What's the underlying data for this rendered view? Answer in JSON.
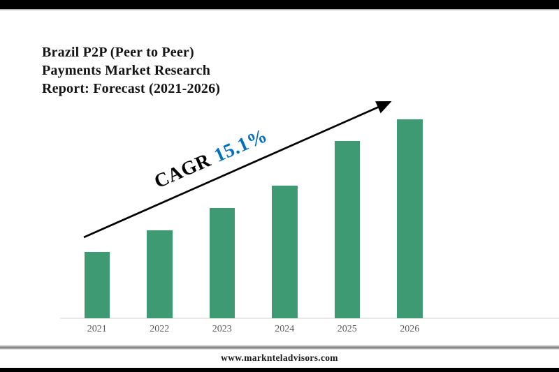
{
  "slide": {
    "title_lines": [
      "Brazil P2P (Peer to Peer)",
      "Payments Market Research",
      "Report: Forecast (2021-2026)"
    ],
    "footer_url": "www.marknteladvisors.com"
  },
  "cagr": {
    "label": "CAGR",
    "value": "15.1%"
  },
  "colors": {
    "bar_green": "#3e9a73",
    "cagr_value_blue": "#0070c0",
    "axis_label_gray": "#595959",
    "axis_line_gray": "#eaeaea",
    "border_bars_black": "#000000",
    "title_black": "#141414"
  },
  "chart_data": {
    "type": "bar",
    "title": "Brazil P2P (Peer to Peer) Payments Market Research Report: Forecast (2021-2026)",
    "categories": [
      "2021",
      "2022",
      "2023",
      "2024",
      "2025",
      "2026"
    ],
    "values": [
      0.332,
      0.443,
      0.554,
      0.667,
      0.89,
      1.0
    ],
    "values_note": "relative bar heights; no numeric y-axis or data labels are shown in the figure",
    "xlabel": "",
    "ylabel": "",
    "ylim": [
      0,
      1
    ],
    "legend": false,
    "gridlines": false,
    "bar_color": "#3e9a73",
    "annotation": "CAGR 15.1% alongside an upward diagonal trend arrow from first bar to last bar"
  }
}
